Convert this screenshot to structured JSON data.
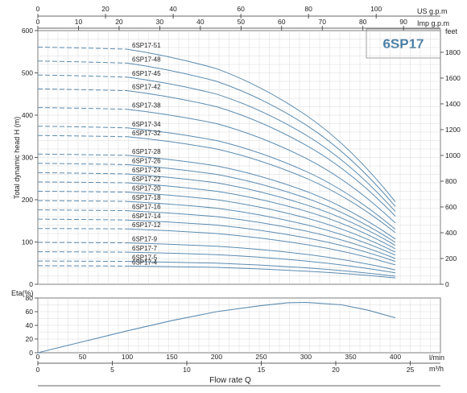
{
  "brand": "6SP17",
  "top_axes": [
    {
      "unit": "US g.p.m",
      "ticks": [
        0,
        20,
        40,
        60,
        80,
        100
      ]
    },
    {
      "unit": "Imp g.p.m",
      "ticks": [
        0,
        10,
        20,
        30,
        40,
        50,
        60,
        70,
        80,
        90
      ]
    }
  ],
  "bottom_axes": [
    {
      "unit": "l/min",
      "ticks": [
        0,
        50,
        100,
        150,
        200,
        250,
        300,
        350,
        400
      ]
    },
    {
      "unit": "m³/h",
      "ticks": [
        0,
        5,
        10,
        15,
        20,
        25
      ]
    }
  ],
  "xlabel": "Flow rate Q",
  "chart_data": [
    {
      "type": "line",
      "title": "",
      "ylabel": "Total dynamic head H (m)",
      "y2label": "feet",
      "xlim": [
        0,
        400
      ],
      "ylim": [
        0,
        600
      ],
      "yticks": [
        0,
        100,
        200,
        300,
        400,
        500,
        600
      ],
      "y2ticks": [
        0,
        200,
        400,
        600,
        800,
        1000,
        1200,
        1400,
        1600,
        1800
      ],
      "dashed_segment_x": [
        0,
        100
      ],
      "series": [
        {
          "name": "6SP17-51",
          "values": [
            [
              0,
              561
            ],
            [
              100,
              556
            ],
            [
              200,
              510
            ],
            [
              300,
              400
            ],
            [
              400,
              195
            ]
          ]
        },
        {
          "name": "6SP17-48",
          "values": [
            [
              0,
              528
            ],
            [
              100,
              523
            ],
            [
              200,
              480
            ],
            [
              300,
              377
            ],
            [
              400,
              184
            ]
          ]
        },
        {
          "name": "6SP17-45",
          "values": [
            [
              0,
              495
            ],
            [
              100,
              490
            ],
            [
              200,
              450
            ],
            [
              300,
              353
            ],
            [
              400,
              172
            ]
          ]
        },
        {
          "name": "6SP17-42",
          "values": [
            [
              0,
              462
            ],
            [
              100,
              458
            ],
            [
              200,
              420
            ],
            [
              300,
              329
            ],
            [
              400,
              161
            ]
          ]
        },
        {
          "name": "6SP17-38",
          "values": [
            [
              0,
              418
            ],
            [
              100,
              414
            ],
            [
              200,
              380
            ],
            [
              300,
              298
            ],
            [
              400,
              145
            ]
          ]
        },
        {
          "name": "6SP17-34",
          "values": [
            [
              0,
              374
            ],
            [
              100,
              370
            ],
            [
              200,
              340
            ],
            [
              300,
              267
            ],
            [
              400,
              130
            ]
          ]
        },
        {
          "name": "6SP17-32",
          "values": [
            [
              0,
              352
            ],
            [
              100,
              349
            ],
            [
              200,
              320
            ],
            [
              300,
              251
            ],
            [
              400,
              122
            ]
          ]
        },
        {
          "name": "6SP17-28",
          "values": [
            [
              0,
              308
            ],
            [
              100,
              305
            ],
            [
              200,
              280
            ],
            [
              300,
              220
            ],
            [
              400,
              107
            ]
          ]
        },
        {
          "name": "6SP17-26",
          "values": [
            [
              0,
              286
            ],
            [
              100,
              283
            ],
            [
              200,
              260
            ],
            [
              300,
              204
            ],
            [
              400,
              99
            ]
          ]
        },
        {
          "name": "6SP17-24",
          "values": [
            [
              0,
              264
            ],
            [
              100,
              261
            ],
            [
              200,
              240
            ],
            [
              300,
              188
            ],
            [
              400,
              92
            ]
          ]
        },
        {
          "name": "6SP17-22",
          "values": [
            [
              0,
              242
            ],
            [
              100,
              240
            ],
            [
              200,
              220
            ],
            [
              300,
              173
            ],
            [
              400,
              84
            ]
          ]
        },
        {
          "name": "6SP17-20",
          "values": [
            [
              0,
              220
            ],
            [
              100,
              218
            ],
            [
              200,
              200
            ],
            [
              300,
              157
            ],
            [
              400,
              76
            ]
          ]
        },
        {
          "name": "6SP17-18",
          "values": [
            [
              0,
              198
            ],
            [
              100,
              196
            ],
            [
              200,
              180
            ],
            [
              300,
              141
            ],
            [
              400,
              69
            ]
          ]
        },
        {
          "name": "6SP17-16",
          "values": [
            [
              0,
              176
            ],
            [
              100,
              174
            ],
            [
              200,
              160
            ],
            [
              300,
              126
            ],
            [
              400,
              61
            ]
          ]
        },
        {
          "name": "6SP17-14",
          "values": [
            [
              0,
              154
            ],
            [
              100,
              152
            ],
            [
              200,
              140
            ],
            [
              300,
              110
            ],
            [
              400,
              54
            ]
          ]
        },
        {
          "name": "6SP17-12",
          "values": [
            [
              0,
              132
            ],
            [
              100,
              131
            ],
            [
              200,
              120
            ],
            [
              300,
              94
            ],
            [
              400,
              46
            ]
          ]
        },
        {
          "name": "6SP17-9",
          "values": [
            [
              0,
              99
            ],
            [
              100,
              98
            ],
            [
              200,
              90
            ],
            [
              300,
              71
            ],
            [
              400,
              34
            ]
          ]
        },
        {
          "name": "6SP17-7",
          "values": [
            [
              0,
              77
            ],
            [
              100,
              76
            ],
            [
              200,
              70
            ],
            [
              300,
              55
            ],
            [
              400,
              27
            ]
          ]
        },
        {
          "name": "6SP17-5",
          "values": [
            [
              0,
              55
            ],
            [
              100,
              54
            ],
            [
              200,
              50
            ],
            [
              300,
              39
            ],
            [
              400,
              19
            ]
          ]
        },
        {
          "name": "6SP17-4",
          "values": [
            [
              0,
              44
            ],
            [
              100,
              43
            ],
            [
              200,
              40
            ],
            [
              300,
              31
            ],
            [
              400,
              15
            ]
          ]
        }
      ]
    },
    {
      "type": "line",
      "title": "",
      "ylabel": "Eta(%)",
      "xlim": [
        0,
        400
      ],
      "ylim": [
        0,
        80
      ],
      "yticks": [
        0,
        20,
        40,
        60,
        80
      ],
      "series": [
        {
          "values": [
            [
              0,
              0
            ],
            [
              50,
              16
            ],
            [
              100,
              32
            ],
            [
              150,
              47
            ],
            [
              200,
              60
            ],
            [
              250,
              69
            ],
            [
              280,
              73
            ],
            [
              300,
              73.5
            ],
            [
              340,
              70
            ],
            [
              370,
              62
            ],
            [
              400,
              51
            ]
          ]
        }
      ]
    }
  ]
}
